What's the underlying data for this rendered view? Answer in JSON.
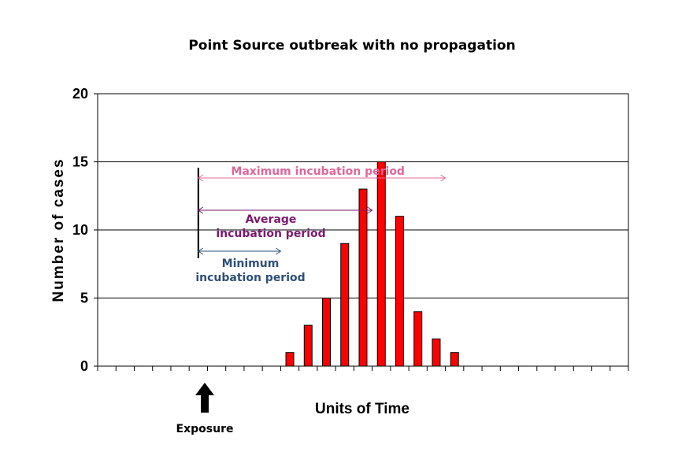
{
  "chart_data": {
    "type": "bar",
    "title": "Point Source outbreak with no propagation",
    "xlabel": "Units of Time",
    "ylabel": "Number of cases",
    "ylim": [
      0,
      20
    ],
    "yticks": [
      0,
      5,
      10,
      15,
      20
    ],
    "grid": true,
    "num_time_units": 29,
    "x": [
      11,
      12,
      13,
      14,
      15,
      16,
      17,
      18,
      19,
      20
    ],
    "values": [
      1,
      3,
      5,
      9,
      13,
      15,
      11,
      4,
      2,
      1
    ],
    "bar_color": "#ff0000",
    "exposure": {
      "label": "Exposure",
      "time": 6
    },
    "annotations": [
      {
        "label": "Maximum incubation period",
        "from": 6,
        "to": 19.5,
        "color": "#e0689a"
      },
      {
        "label": "Average\nincubation period",
        "from": 6,
        "to": 15.5,
        "color": "#7a1a6e"
      },
      {
        "label": "Minimum\nincubation period",
        "from": 6,
        "to": 10.5,
        "color": "#2e4f78"
      }
    ]
  }
}
